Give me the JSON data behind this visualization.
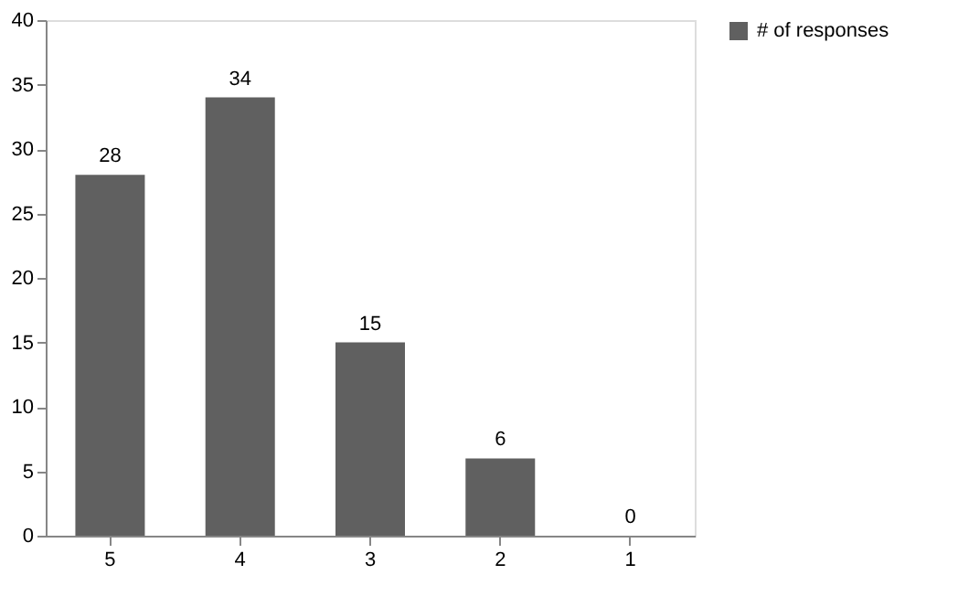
{
  "chart_data": {
    "type": "bar",
    "categories": [
      "5",
      "4",
      "3",
      "2",
      "1"
    ],
    "series": [
      {
        "name": "# of responses",
        "color": "#606060",
        "values": [
          28,
          34,
          15,
          6,
          0
        ]
      }
    ],
    "ylim": [
      0,
      40
    ],
    "yticks": [
      0,
      5,
      10,
      15,
      20,
      25,
      30,
      35,
      40
    ],
    "data_labels": true,
    "grid": false,
    "legend": "right"
  }
}
